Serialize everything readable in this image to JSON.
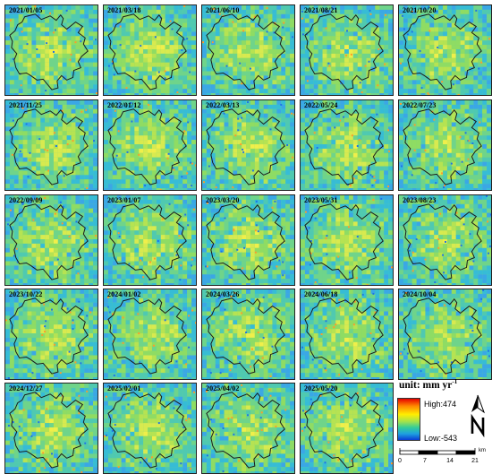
{
  "panels": [
    {
      "date": "2021/01/05"
    },
    {
      "date": "2021/03/18"
    },
    {
      "date": "2021/06/10"
    },
    {
      "date": "2021/08/21"
    },
    {
      "date": "2021/10/20"
    },
    {
      "date": "2021/11/25"
    },
    {
      "date": "2022/01/12"
    },
    {
      "date": "2022/03/13"
    },
    {
      "date": "2022/05/24"
    },
    {
      "date": "2022/07/23"
    },
    {
      "date": "2022/09/09"
    },
    {
      "date": "2023/01/07"
    },
    {
      "date": "2023/03/20"
    },
    {
      "date": "2023/05/31"
    },
    {
      "date": "2023/08/23"
    },
    {
      "date": "2023/10/22"
    },
    {
      "date": "2024/01/02"
    },
    {
      "date": "2024/03/26"
    },
    {
      "date": "2024/06/18"
    },
    {
      "date": "2024/10/04"
    },
    {
      "date": "2024/12/27"
    },
    {
      "date": "2025/02/01"
    },
    {
      "date": "2025/04/02"
    },
    {
      "date": "2025/05/20"
    }
  ],
  "legend": {
    "unit_prefix": "unit: mm yr",
    "unit_exponent": "-1",
    "high_label": "High:474",
    "low_label": "Low:-543",
    "colors": [
      "#e60000",
      "#ff8a00",
      "#ffee00",
      "#a6e34a",
      "#33cc99",
      "#1ea0e0",
      "#0a3cd6"
    ]
  },
  "scale_bar": {
    "ticks": [
      "0",
      "7",
      "14",
      "21"
    ],
    "unit": "km"
  },
  "north_arrow": {
    "label": "N"
  }
}
